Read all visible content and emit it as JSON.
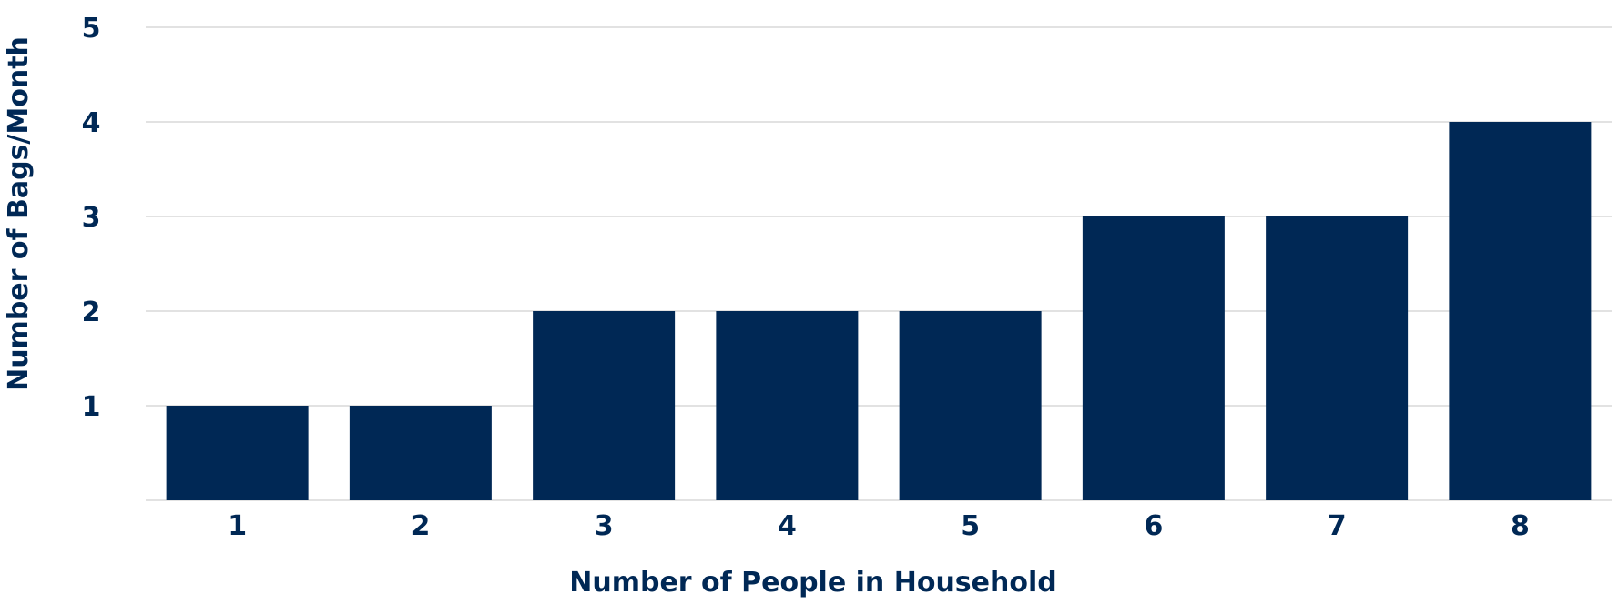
{
  "colors": {
    "bar": "#002855",
    "text": "#002855",
    "grid": "#d9d9d9"
  },
  "chart_data": {
    "type": "bar",
    "title": "",
    "xlabel": "Number of People in Household",
    "ylabel": "Number of Bags/Month",
    "categories": [
      "1",
      "2",
      "3",
      "4",
      "5",
      "6",
      "7",
      "8"
    ],
    "values": [
      1,
      1,
      2,
      2,
      2,
      3,
      3,
      4
    ],
    "ylim": [
      0,
      5
    ],
    "yticks": [
      1,
      2,
      3,
      4,
      5
    ],
    "grid": true,
    "legend": "none"
  }
}
